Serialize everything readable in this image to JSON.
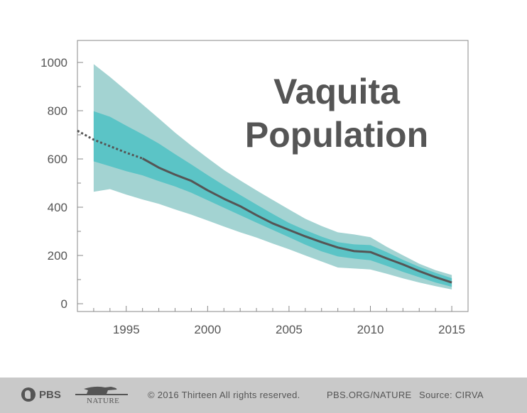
{
  "chart_data": {
    "type": "area",
    "title_lines": [
      "Vaquita",
      "Population"
    ],
    "xlim": [
      1992,
      2016
    ],
    "ylim": [
      0,
      1000
    ],
    "x_ticks": [
      "1995",
      "2000",
      "2005",
      "2010",
      "2015"
    ],
    "y_ticks": [
      "0",
      "200",
      "400",
      "600",
      "800",
      "1000"
    ],
    "grid": false,
    "series": [
      {
        "role": "dotted-estimate-line",
        "color": "#555555",
        "x": [
          1992,
          1993,
          1994,
          1995,
          1996
        ],
        "y": [
          717,
          680,
          653,
          626,
          602
        ]
      },
      {
        "role": "estimate-line",
        "color": "#555555",
        "x": [
          1996,
          1997,
          1998,
          1999,
          2000,
          2001,
          2002,
          2003,
          2004,
          2005,
          2006,
          2007,
          2008,
          2009,
          2010,
          2011,
          2012,
          2013,
          2014,
          2015
        ],
        "y": [
          602,
          564,
          535,
          509,
          470,
          435,
          404,
          367,
          333,
          306,
          279,
          255,
          233,
          218,
          214,
          188,
          163,
          135,
          110,
          88
        ]
      },
      {
        "role": "inner-band",
        "color": "#5bc4c6",
        "x": [
          1993,
          1994,
          1995,
          1996,
          1997,
          1998,
          1999,
          2000,
          2001,
          2002,
          2003,
          2004,
          2005,
          2006,
          2007,
          2008,
          2009,
          2010,
          2011,
          2012,
          2013,
          2014,
          2015
        ],
        "upper": [
          798,
          775,
          738,
          702,
          664,
          620,
          577,
          533,
          491,
          451,
          411,
          372,
          335,
          305,
          278,
          255,
          246,
          243,
          214,
          182,
          153,
          128,
          106
        ],
        "lower": [
          590,
          570,
          549,
          532,
          508,
          486,
          460,
          429,
          398,
          367,
          336,
          306,
          276,
          245,
          217,
          196,
          187,
          180,
          157,
          132,
          110,
          88,
          70
        ]
      },
      {
        "role": "outer-band",
        "color": "#a3d3d2",
        "x": [
          1993,
          1994,
          1995,
          1996,
          1997,
          1998,
          1999,
          2000,
          2001,
          2002,
          2003,
          2004,
          2005,
          2006,
          2007,
          2008,
          2009,
          2010,
          2011,
          2012,
          2013,
          2014,
          2015
        ],
        "upper": [
          993,
          940,
          883,
          826,
          768,
          709,
          655,
          604,
          554,
          511,
          470,
          430,
          391,
          352,
          322,
          296,
          287,
          276,
          236,
          201,
          166,
          139,
          119
        ],
        "lower": [
          464,
          475,
          452,
          432,
          414,
          391,
          369,
          345,
          320,
          296,
          274,
          249,
          226,
          200,
          175,
          150,
          146,
          142,
          124,
          105,
          88,
          73,
          59
        ]
      }
    ]
  },
  "footer": {
    "pbs_label": "PBS",
    "nature_label": "NATURE",
    "copyright": "© 2016 Thirteen  All rights reserved.",
    "website": "PBS.ORG/NATURE",
    "source": "Source: CIRVA"
  }
}
